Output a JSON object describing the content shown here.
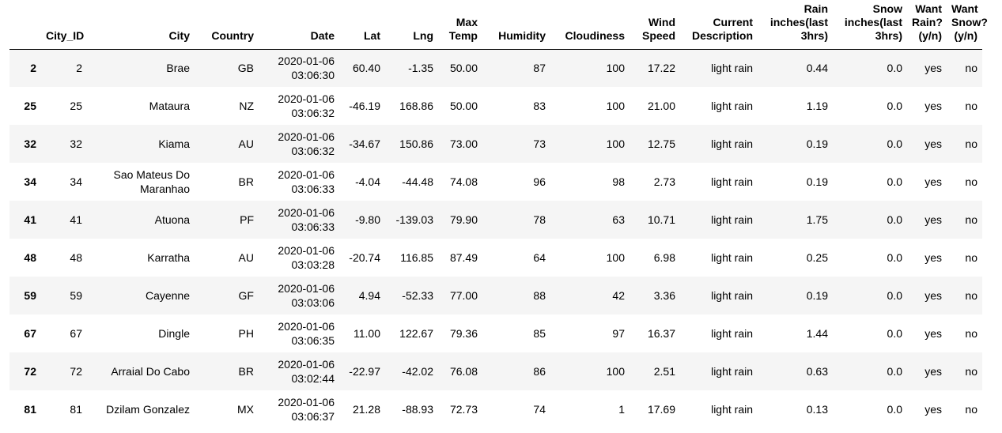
{
  "columns": [
    "",
    "City_ID",
    "City",
    "Country",
    "Date",
    "Lat",
    "Lng",
    "Max Temp",
    "Humidity",
    "Cloudiness",
    "Wind Speed",
    "Current Description",
    "Rain inches(last 3hrs)",
    "Snow inches(last 3hrs)",
    "Want Rain? (y/n)",
    "Want Snow? (y/n)"
  ],
  "rows": [
    {
      "index": "2",
      "city_id": "2",
      "city": "Brae",
      "country": "GB",
      "date": "2020-01-06 03:06:30",
      "lat": "60.40",
      "lng": "-1.35",
      "max_temp": "50.00",
      "humidity": "87",
      "cloudiness": "100",
      "wind_speed": "17.22",
      "description": "light rain",
      "rain": "0.44",
      "snow": "0.0",
      "want_rain": "yes",
      "want_snow": "no"
    },
    {
      "index": "25",
      "city_id": "25",
      "city": "Mataura",
      "country": "NZ",
      "date": "2020-01-06 03:06:32",
      "lat": "-46.19",
      "lng": "168.86",
      "max_temp": "50.00",
      "humidity": "83",
      "cloudiness": "100",
      "wind_speed": "21.00",
      "description": "light rain",
      "rain": "1.19",
      "snow": "0.0",
      "want_rain": "yes",
      "want_snow": "no"
    },
    {
      "index": "32",
      "city_id": "32",
      "city": "Kiama",
      "country": "AU",
      "date": "2020-01-06 03:06:32",
      "lat": "-34.67",
      "lng": "150.86",
      "max_temp": "73.00",
      "humidity": "73",
      "cloudiness": "100",
      "wind_speed": "12.75",
      "description": "light rain",
      "rain": "0.19",
      "snow": "0.0",
      "want_rain": "yes",
      "want_snow": "no"
    },
    {
      "index": "34",
      "city_id": "34",
      "city": "Sao Mateus Do Maranhao",
      "country": "BR",
      "date": "2020-01-06 03:06:33",
      "lat": "-4.04",
      "lng": "-44.48",
      "max_temp": "74.08",
      "humidity": "96",
      "cloudiness": "98",
      "wind_speed": "2.73",
      "description": "light rain",
      "rain": "0.19",
      "snow": "0.0",
      "want_rain": "yes",
      "want_snow": "no"
    },
    {
      "index": "41",
      "city_id": "41",
      "city": "Atuona",
      "country": "PF",
      "date": "2020-01-06 03:06:33",
      "lat": "-9.80",
      "lng": "-139.03",
      "max_temp": "79.90",
      "humidity": "78",
      "cloudiness": "63",
      "wind_speed": "10.71",
      "description": "light rain",
      "rain": "1.75",
      "snow": "0.0",
      "want_rain": "yes",
      "want_snow": "no"
    },
    {
      "index": "48",
      "city_id": "48",
      "city": "Karratha",
      "country": "AU",
      "date": "2020-01-06 03:03:28",
      "lat": "-20.74",
      "lng": "116.85",
      "max_temp": "87.49",
      "humidity": "64",
      "cloudiness": "100",
      "wind_speed": "6.98",
      "description": "light rain",
      "rain": "0.25",
      "snow": "0.0",
      "want_rain": "yes",
      "want_snow": "no"
    },
    {
      "index": "59",
      "city_id": "59",
      "city": "Cayenne",
      "country": "GF",
      "date": "2020-01-06 03:03:06",
      "lat": "4.94",
      "lng": "-52.33",
      "max_temp": "77.00",
      "humidity": "88",
      "cloudiness": "42",
      "wind_speed": "3.36",
      "description": "light rain",
      "rain": "0.19",
      "snow": "0.0",
      "want_rain": "yes",
      "want_snow": "no"
    },
    {
      "index": "67",
      "city_id": "67",
      "city": "Dingle",
      "country": "PH",
      "date": "2020-01-06 03:06:35",
      "lat": "11.00",
      "lng": "122.67",
      "max_temp": "79.36",
      "humidity": "85",
      "cloudiness": "97",
      "wind_speed": "16.37",
      "description": "light rain",
      "rain": "1.44",
      "snow": "0.0",
      "want_rain": "yes",
      "want_snow": "no"
    },
    {
      "index": "72",
      "city_id": "72",
      "city": "Arraial Do Cabo",
      "country": "BR",
      "date": "2020-01-06 03:02:44",
      "lat": "-22.97",
      "lng": "-42.02",
      "max_temp": "76.08",
      "humidity": "86",
      "cloudiness": "100",
      "wind_speed": "2.51",
      "description": "light rain",
      "rain": "0.63",
      "snow": "0.0",
      "want_rain": "yes",
      "want_snow": "no"
    },
    {
      "index": "81",
      "city_id": "81",
      "city": "Dzilam Gonzalez",
      "country": "MX",
      "date": "2020-01-06 03:06:37",
      "lat": "21.28",
      "lng": "-88.93",
      "max_temp": "72.73",
      "humidity": "74",
      "cloudiness": "1",
      "wind_speed": "17.69",
      "description": "light rain",
      "rain": "0.13",
      "snow": "0.0",
      "want_rain": "yes",
      "want_snow": "no"
    }
  ]
}
